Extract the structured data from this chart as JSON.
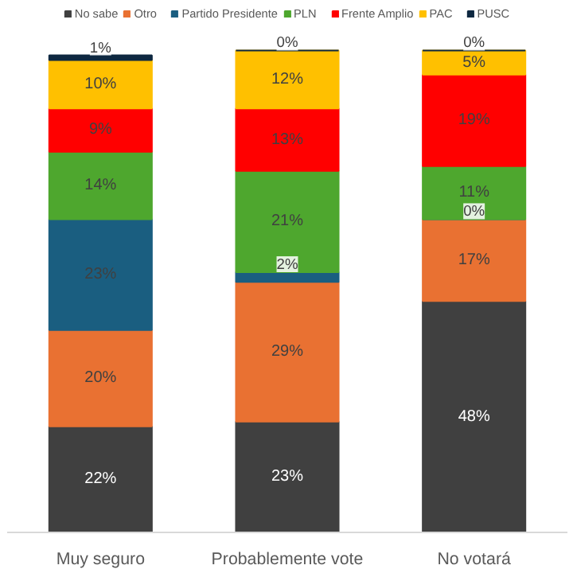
{
  "chart_data": {
    "type": "bar",
    "stacked": true,
    "legend": "top",
    "categories": [
      "Muy seguro",
      "Probablemente vote",
      "No votará"
    ],
    "series": [
      {
        "name": "No sabe",
        "color": "#404040",
        "values": [
          22,
          23,
          48
        ],
        "value_labels": [
          "22%",
          "23%",
          "48%"
        ]
      },
      {
        "name": "Otro",
        "color": "#e97132",
        "values": [
          20,
          29,
          17
        ],
        "value_labels": [
          "20%",
          "29%",
          "17%"
        ]
      },
      {
        "name": "Partido Presidente",
        "color": "#1a5e80",
        "values": [
          23,
          2,
          0
        ],
        "value_labels": [
          "23%",
          "2%",
          "0%"
        ]
      },
      {
        "name": "PLN",
        "color": "#4ea72e",
        "values": [
          14,
          21,
          11
        ],
        "value_labels": [
          "14%",
          "21%",
          "11%"
        ]
      },
      {
        "name": "Frente Amplio",
        "color": "#ff0000",
        "values": [
          9,
          13,
          19
        ],
        "value_labels": [
          "9%",
          "13%",
          "19%"
        ]
      },
      {
        "name": "PAC",
        "color": "#ffc000",
        "values": [
          10,
          12,
          5
        ],
        "value_labels": [
          "10%",
          "12%",
          "5%"
        ]
      },
      {
        "name": "PUSC",
        "color": "#0e2841",
        "values": [
          1,
          0,
          0
        ],
        "value_labels": [
          "1%",
          "0%",
          "0%"
        ]
      }
    ]
  }
}
